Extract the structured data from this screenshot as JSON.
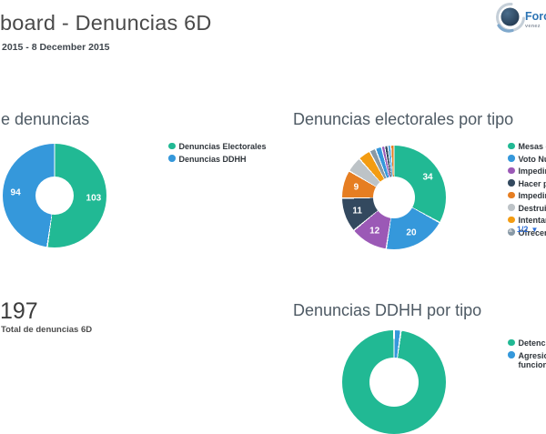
{
  "header": {
    "title": "board - Denuncias 6D",
    "subtitle": "2015 - 8 December 2015"
  },
  "logo": {
    "title": "Foro",
    "subtitle": "venez"
  },
  "widgets": {
    "tipo": {
      "title": "de denuncias",
      "legend": [
        {
          "color": "#21b994",
          "lines": [
            "Denuncias Electorales"
          ]
        },
        {
          "color": "#3598db",
          "lines": [
            "Denuncias DDHH"
          ]
        }
      ]
    },
    "electorales": {
      "title": "Denuncias electorales por tipo",
      "legend": [
        {
          "color": "#21b994",
          "lines": [
            "Mesas e"
          ]
        },
        {
          "color": "#3598db",
          "lines": [
            "Voto Nu"
          ]
        },
        {
          "color": "#9b59b6",
          "lines": [
            "Impedir"
          ]
        },
        {
          "color": "#33495f",
          "lines": [
            "Hacer p"
          ]
        },
        {
          "color": "#e67e22",
          "lines": [
            "Impedir"
          ]
        },
        {
          "color": "#bdc3c7",
          "lines": [
            "Destruir"
          ]
        },
        {
          "color": "#f39c12",
          "lines": [
            "Intentar"
          ]
        },
        {
          "color": "#8899a6",
          "lines": [
            "Ofrecer"
          ]
        }
      ],
      "pagination": {
        "up": "▲",
        "label": "1/2",
        "down": "▼"
      }
    },
    "total": {
      "value": "197",
      "label": "Total de denuncias 6D"
    },
    "ddhh": {
      "title": "Denuncias DDHH por tipo",
      "legend": [
        {
          "color": "#21b994",
          "lines": [
            "Detenci"
          ]
        },
        {
          "color": "#3598db",
          "lines": [
            "Agresio",
            "funciona"
          ]
        }
      ]
    }
  },
  "chart_data": [
    {
      "type": "pie",
      "title": "de denuncias",
      "legend_position": "right",
      "slices": [
        {
          "label": "Denuncias Electorales",
          "value": 103,
          "color": "#21b994",
          "value_label": "103"
        },
        {
          "label": "Denuncias DDHH",
          "value": 94,
          "color": "#3598db",
          "value_label": "94"
        }
      ]
    },
    {
      "type": "pie",
      "title": "Denuncias electorales por tipo",
      "legend_position": "right",
      "slices": [
        {
          "label": "Mesas e",
          "value": 34,
          "color": "#21b994",
          "value_label": "34"
        },
        {
          "label": "Voto Nu",
          "value": 20,
          "color": "#3598db",
          "value_label": "20"
        },
        {
          "label": "Impedir",
          "value": 12,
          "color": "#9b59b6",
          "value_label": "12"
        },
        {
          "label": "Hacer p",
          "value": 11,
          "color": "#33495f",
          "value_label": "11"
        },
        {
          "label": "Impedir",
          "value": 9,
          "color": "#e67e22",
          "value_label": "9"
        },
        {
          "label": "Destruir",
          "value": 5,
          "color": "#bdc3c7"
        },
        {
          "label": "Intentar",
          "value": 4,
          "color": "#f39c12"
        },
        {
          "label": "Ofrecer",
          "value": 2,
          "color": "#8899a6"
        },
        {
          "label": "",
          "value": 2,
          "color": "#3598db"
        },
        {
          "label": "",
          "value": 1,
          "color": "#9b59b6"
        },
        {
          "label": "",
          "value": 1,
          "color": "#33495f"
        },
        {
          "label": "",
          "value": 1,
          "color": "#5dade2"
        },
        {
          "label": "",
          "value": 1,
          "color": "#e67e22"
        }
      ]
    },
    {
      "type": "number",
      "title": "Total de denuncias 6D",
      "value": 197
    },
    {
      "type": "pie",
      "title": "Denuncias DDHH por tipo",
      "legend_position": "right",
      "slices": [
        {
          "label": "Agresio funciona",
          "value": 2,
          "color": "#3598db"
        },
        {
          "label": "Detenci",
          "value": 92,
          "color": "#21b994"
        }
      ]
    }
  ]
}
